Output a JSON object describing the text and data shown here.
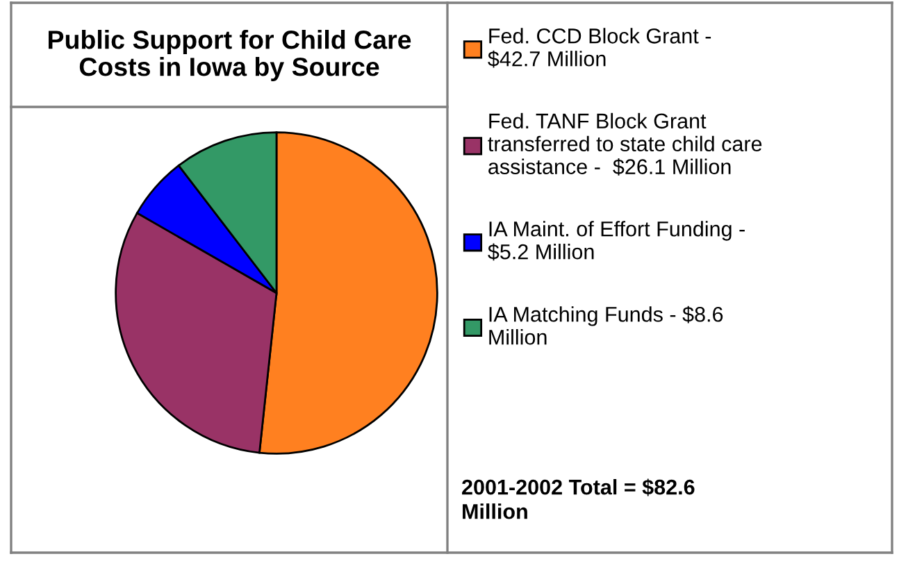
{
  "chart_data": {
    "type": "pie",
    "title": "Public Support for Child Care\nCosts in Iowa by Source",
    "categories": [
      "Fed. CCD Block Grant -\n$42.7 Million",
      "Fed. TANF Block Grant\ntransferred to state child care\nassistance -  $26.1 Million",
      "IA Maint. of Effort Funding -\n$5.2 Million",
      "IA Matching Funds - $8.6\nMillion"
    ],
    "values": [
      42.7,
      26.1,
      5.2,
      8.6
    ],
    "colors": [
      "#ff8020",
      "#993366",
      "#0000ff",
      "#339966"
    ],
    "legend": "right",
    "annotations": [
      "2001-2002 Total = $82.6\nMillion"
    ]
  }
}
